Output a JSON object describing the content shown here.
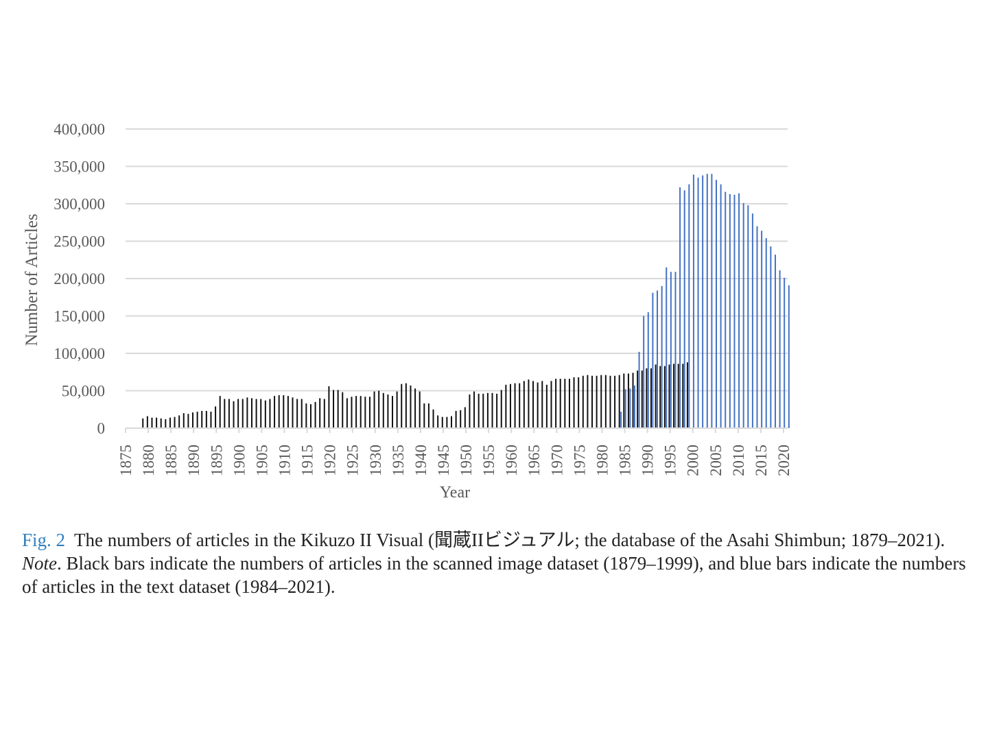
{
  "chart_data": {
    "type": "bar",
    "ylabel": "Number of Articles",
    "xlabel": "Year",
    "ylim": [
      0,
      400000
    ],
    "yticks": [
      0,
      50000,
      100000,
      150000,
      200000,
      250000,
      300000,
      350000,
      400000
    ],
    "ytick_labels": [
      "0",
      "50,000",
      "100,000",
      "150,000",
      "200,000",
      "250,000",
      "300,000",
      "350,000",
      "400,000"
    ],
    "xlim": [
      1875,
      2021
    ],
    "xtick_labels": [
      "1875",
      "1880",
      "1885",
      "1890",
      "1895",
      "1900",
      "1905",
      "1910",
      "1915",
      "1920",
      "1925",
      "1930",
      "1935",
      "1940",
      "1945",
      "1950",
      "1955",
      "1960",
      "1965",
      "1970",
      "1975",
      "1980",
      "1985",
      "1990",
      "1995",
      "2000",
      "2005",
      "2010",
      "2015",
      "2020"
    ],
    "grid": true,
    "series": [
      {
        "name": "Scanned image dataset (1879–1999)",
        "color": "#111111",
        "start_year": 1879,
        "values": [
          13000,
          16000,
          14000,
          14000,
          13000,
          12000,
          14000,
          15000,
          17000,
          20000,
          19000,
          21000,
          22000,
          23000,
          23000,
          22000,
          29000,
          43000,
          39000,
          39000,
          36000,
          39000,
          39000,
          41000,
          40000,
          39000,
          39000,
          37000,
          39000,
          43000,
          44000,
          44000,
          43000,
          41000,
          39000,
          39000,
          33000,
          32000,
          35000,
          40000,
          39000,
          56000,
          51000,
          51000,
          48000,
          40000,
          42000,
          43000,
          43000,
          42000,
          42000,
          49000,
          50000,
          47000,
          45000,
          43000,
          49000,
          59000,
          60000,
          57000,
          53000,
          49000,
          33000,
          33000,
          25000,
          17000,
          15000,
          15000,
          16000,
          23000,
          24000,
          28000,
          45000,
          49000,
          46000,
          46000,
          47000,
          47000,
          46000,
          51000,
          58000,
          59000,
          60000,
          60000,
          63000,
          65000,
          63000,
          61000,
          63000,
          58000,
          63000,
          66000,
          66000,
          66000,
          66000,
          68000,
          68000,
          70000,
          71000,
          70000,
          70000,
          71000,
          71000,
          70000,
          70000,
          71000,
          73000,
          73000,
          74000,
          77000,
          77000,
          80000,
          80000,
          85000,
          83000,
          83000,
          85000,
          86000,
          86000,
          86000,
          88000
        ]
      },
      {
        "name": "Text dataset (1984–2021)",
        "color": "#4472c4",
        "start_year": 1984,
        "values": [
          22000,
          52000,
          53000,
          57000,
          102000,
          150000,
          155000,
          181000,
          184000,
          190000,
          215000,
          209000,
          209000,
          322000,
          318000,
          326000,
          339000,
          335000,
          338000,
          340000,
          340000,
          332000,
          326000,
          316000,
          313000,
          312000,
          314000,
          301000,
          298000,
          287000,
          270000,
          264000,
          254000,
          243000,
          232000,
          211000,
          201000,
          191000
        ]
      }
    ]
  },
  "caption": {
    "fig_label": "Fig. 2",
    "text": "The numbers of articles in the Kikuzo II Visual (聞蔵IIビジュアル; the database of the Asahi Shimbun; 1879–2021).",
    "note_label": "Note",
    "note_text": ". Black bars indicate the numbers of articles in the scanned image dataset (1879–1999), and blue bars indicate the numbers of articles in the text dataset (1984–2021)."
  }
}
